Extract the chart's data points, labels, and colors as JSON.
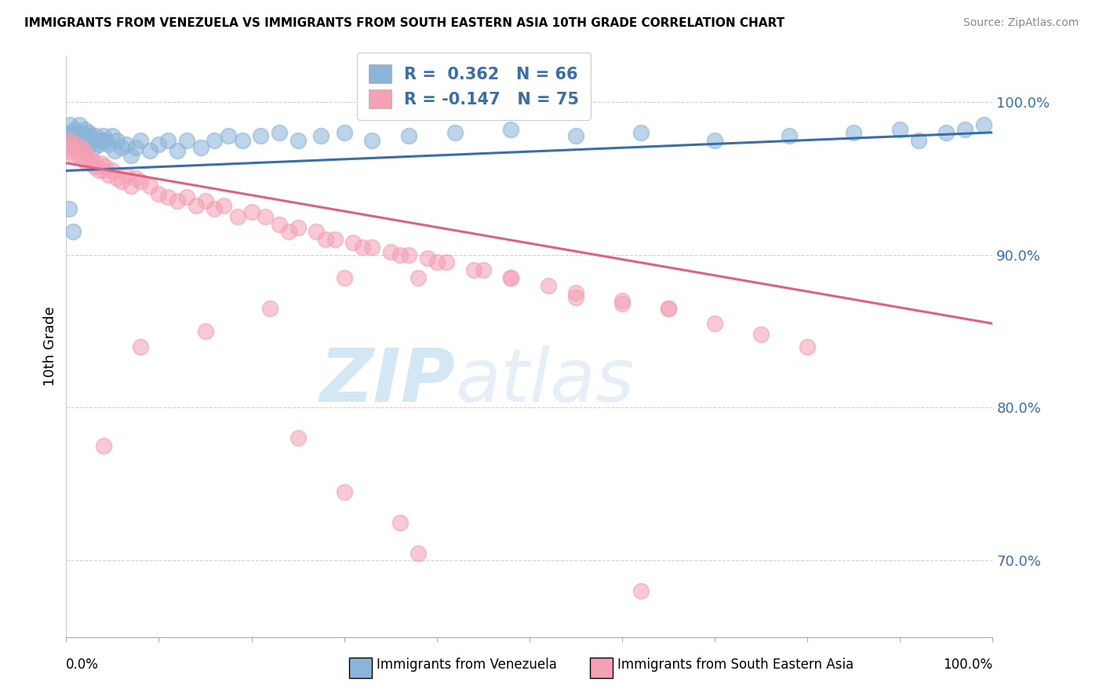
{
  "title": "IMMIGRANTS FROM VENEZUELA VS IMMIGRANTS FROM SOUTH EASTERN ASIA 10TH GRADE CORRELATION CHART",
  "source": "Source: ZipAtlas.com",
  "ylabel": "10th Grade",
  "blue_color": "#8ab4d8",
  "pink_color": "#f4a0b5",
  "blue_line_color": "#3a6ea8",
  "pink_line_color": "#e06080",
  "legend_text_color": "#3a6ea8",
  "ytick_color": "#3a6ea8",
  "yticks": [
    70.0,
    80.0,
    90.0,
    100.0
  ],
  "ytick_labels": [
    "70.0%",
    "80.0%",
    "90.0%",
    "100.0%"
  ],
  "blue_scatter_x": [
    0.2,
    0.4,
    0.5,
    0.6,
    0.8,
    0.9,
    1.0,
    1.1,
    1.2,
    1.4,
    1.5,
    1.6,
    1.8,
    2.0,
    2.0,
    2.1,
    2.2,
    2.4,
    2.5,
    2.6,
    2.8,
    3.0,
    3.2,
    3.5,
    3.8,
    4.0,
    4.2,
    4.5,
    5.0,
    5.2,
    5.5,
    6.0,
    6.5,
    7.0,
    7.5,
    8.0,
    9.0,
    10.0,
    11.0,
    12.0,
    13.0,
    14.5,
    16.0,
    17.5,
    19.0,
    21.0,
    23.0,
    25.0,
    27.5,
    30.0,
    33.0,
    37.0,
    42.0,
    48.0,
    55.0,
    62.0,
    70.0,
    78.0,
    85.0,
    90.0,
    92.0,
    95.0,
    97.0,
    99.0,
    0.3,
    0.7
  ],
  "blue_scatter_y": [
    97.5,
    98.5,
    97.8,
    98.0,
    97.2,
    98.2,
    97.5,
    97.8,
    97.0,
    98.5,
    97.2,
    98.0,
    97.5,
    97.8,
    98.2,
    97.0,
    97.5,
    98.0,
    97.2,
    97.8,
    97.5,
    97.0,
    97.8,
    97.2,
    97.5,
    97.8,
    97.5,
    97.2,
    97.8,
    96.8,
    97.5,
    97.0,
    97.2,
    96.5,
    97.0,
    97.5,
    96.8,
    97.2,
    97.5,
    96.8,
    97.5,
    97.0,
    97.5,
    97.8,
    97.5,
    97.8,
    98.0,
    97.5,
    97.8,
    98.0,
    97.5,
    97.8,
    98.0,
    98.2,
    97.8,
    98.0,
    97.5,
    97.8,
    98.0,
    98.2,
    97.5,
    98.0,
    98.2,
    98.5,
    93.0,
    91.5
  ],
  "pink_scatter_x": [
    0.2,
    0.4,
    0.5,
    0.6,
    0.8,
    1.0,
    1.2,
    1.4,
    1.6,
    1.8,
    2.0,
    2.2,
    2.5,
    2.8,
    3.0,
    3.2,
    3.5,
    3.8,
    4.0,
    4.2,
    4.5,
    5.0,
    5.5,
    6.0,
    6.5,
    7.0,
    7.5,
    8.0,
    9.0,
    10.0,
    11.0,
    12.0,
    13.0,
    14.0,
    15.0,
    16.0,
    17.0,
    18.5,
    20.0,
    21.5,
    23.0,
    25.0,
    27.0,
    29.0,
    31.0,
    33.0,
    35.0,
    37.0,
    39.0,
    41.0,
    45.0,
    24.0,
    28.0,
    32.0,
    36.0,
    40.0,
    44.0,
    48.0,
    52.0,
    55.0,
    60.0,
    65.0,
    55.0,
    60.0,
    65.0,
    70.0,
    75.0,
    80.0,
    48.0,
    38.0,
    30.0,
    22.0,
    15.0,
    8.0,
    4.0
  ],
  "pink_scatter_y": [
    97.2,
    97.5,
    96.8,
    97.0,
    96.5,
    97.2,
    96.8,
    96.5,
    97.0,
    96.2,
    96.8,
    96.5,
    96.0,
    96.2,
    95.8,
    96.0,
    95.5,
    96.0,
    95.5,
    95.8,
    95.2,
    95.5,
    95.0,
    94.8,
    95.2,
    94.5,
    95.0,
    94.8,
    94.5,
    94.0,
    93.8,
    93.5,
    93.8,
    93.2,
    93.5,
    93.0,
    93.2,
    92.5,
    92.8,
    92.5,
    92.0,
    91.8,
    91.5,
    91.0,
    90.8,
    90.5,
    90.2,
    90.0,
    89.8,
    89.5,
    89.0,
    91.5,
    91.0,
    90.5,
    90.0,
    89.5,
    89.0,
    88.5,
    88.0,
    87.5,
    87.0,
    86.5,
    87.2,
    86.8,
    86.5,
    85.5,
    84.8,
    84.0,
    88.5,
    88.5,
    88.5,
    86.5,
    85.0,
    84.0,
    77.5
  ],
  "pink_scatter_outliers_x": [
    25.0,
    30.0,
    36.0,
    38.0,
    62.0
  ],
  "pink_scatter_outliers_y": [
    78.0,
    74.5,
    72.5,
    70.5,
    68.0
  ],
  "blue_trend_x0": 0,
  "blue_trend_y0": 95.5,
  "blue_trend_x1": 100,
  "blue_trend_y1": 98.0,
  "pink_trend_x0": 0,
  "pink_trend_y0": 96.0,
  "pink_trend_x1": 100,
  "pink_trend_y1": 85.5,
  "xlim": [
    0,
    100
  ],
  "ylim": [
    65,
    103
  ],
  "watermark_zip": "ZIP",
  "watermark_atlas": "atlas",
  "background_color": "#ffffff",
  "grid_color": "#cccccc",
  "legend_label_blue": "Immigrants from Venezuela",
  "legend_label_pink": "Immigrants from South Eastern Asia",
  "xtick_positions": [
    0,
    10,
    20,
    30,
    40,
    50,
    60,
    70,
    80,
    90,
    100
  ],
  "legend_r1_val": "0.362",
  "legend_r2_val": "-0.147",
  "legend_n1": "66",
  "legend_n2": "75"
}
